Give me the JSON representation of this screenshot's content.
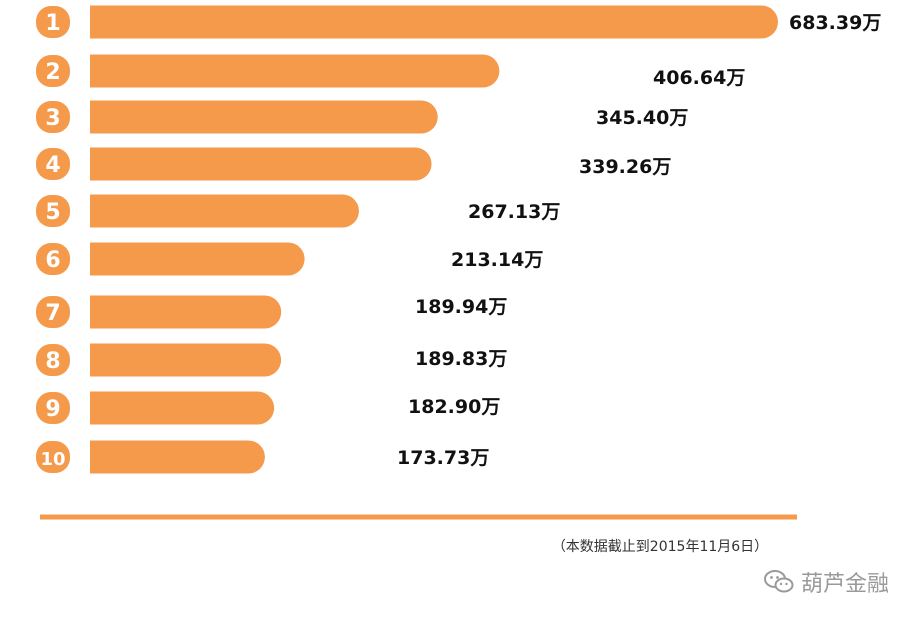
{
  "chart_data": {
    "type": "bar",
    "orientation": "horizontal",
    "categories": [
      "1",
      "2",
      "3",
      "4",
      "5",
      "6",
      "7",
      "8",
      "9",
      "10"
    ],
    "values": [
      683.39,
      406.64,
      345.4,
      339.26,
      267.13,
      213.14,
      189.94,
      189.83,
      182.9,
      173.73
    ],
    "value_labels": [
      "683.39万",
      "406.64万",
      "345.40万",
      "339.26万",
      "267.13万",
      "213.14万",
      "189.94万",
      "189.83万",
      "182.90万",
      "173.73万"
    ],
    "bar_color": "#F5994B",
    "title": "",
    "xlabel": "",
    "ylabel": "",
    "legend": "none",
    "grid": false
  },
  "footnote": "（本数据截止到2015年11月6日）",
  "watermark": {
    "text": "葫芦金融",
    "icon": "wechat-icon",
    "color": "#9a9a9a"
  }
}
